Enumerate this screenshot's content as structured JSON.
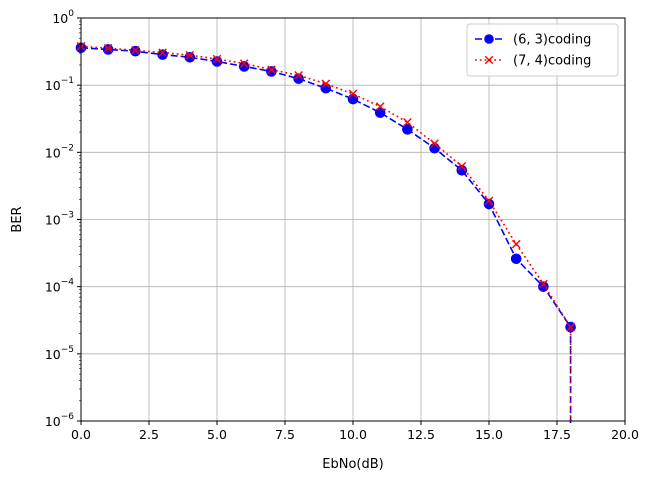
{
  "chart_data": {
    "type": "line",
    "title": "",
    "xlabel": "EbNo(dB)",
    "ylabel": "BER",
    "xlim": [
      0,
      20
    ],
    "ylim": [
      1e-06,
      1
    ],
    "yscale": "log",
    "grid": true,
    "legend_position": "top-right",
    "x_ticks": [
      "0.0",
      "2.5",
      "5.0",
      "7.5",
      "10.0",
      "12.5",
      "15.0",
      "17.5",
      "20.0"
    ],
    "y_ticks": [
      {
        "base": "10",
        "exp": "0"
      },
      {
        "base": "10",
        "exp": "−1"
      },
      {
        "base": "10",
        "exp": "−2"
      },
      {
        "base": "10",
        "exp": "−3"
      },
      {
        "base": "10",
        "exp": "−4"
      },
      {
        "base": "10",
        "exp": "−5"
      },
      {
        "base": "10",
        "exp": "−6"
      }
    ],
    "x": [
      0,
      1,
      2,
      3,
      4,
      5,
      6,
      7,
      8,
      9,
      10,
      11,
      12,
      13,
      14,
      15,
      16,
      17,
      18
    ],
    "series": [
      {
        "name": "(6, 3)coding",
        "color": "#0000ff",
        "linestyle": "dashed",
        "marker": "circle",
        "values": [
          0.36,
          0.34,
          0.32,
          0.285,
          0.26,
          0.225,
          0.19,
          0.16,
          0.125,
          0.09,
          0.062,
          0.039,
          0.022,
          0.0115,
          0.0054,
          0.0017,
          0.00026,
          0.0001,
          2.5e-05
        ],
        "drop_to_axis": true
      },
      {
        "name": "(7, 4)coding",
        "color": "#ff0000",
        "linestyle": "dotted",
        "marker": "x",
        "values": [
          0.38,
          0.355,
          0.33,
          0.305,
          0.28,
          0.245,
          0.21,
          0.17,
          0.14,
          0.105,
          0.074,
          0.048,
          0.028,
          0.0135,
          0.0062,
          0.0019,
          0.00043,
          0.00011,
          2.5e-05
        ],
        "drop_to_axis": true
      }
    ]
  }
}
